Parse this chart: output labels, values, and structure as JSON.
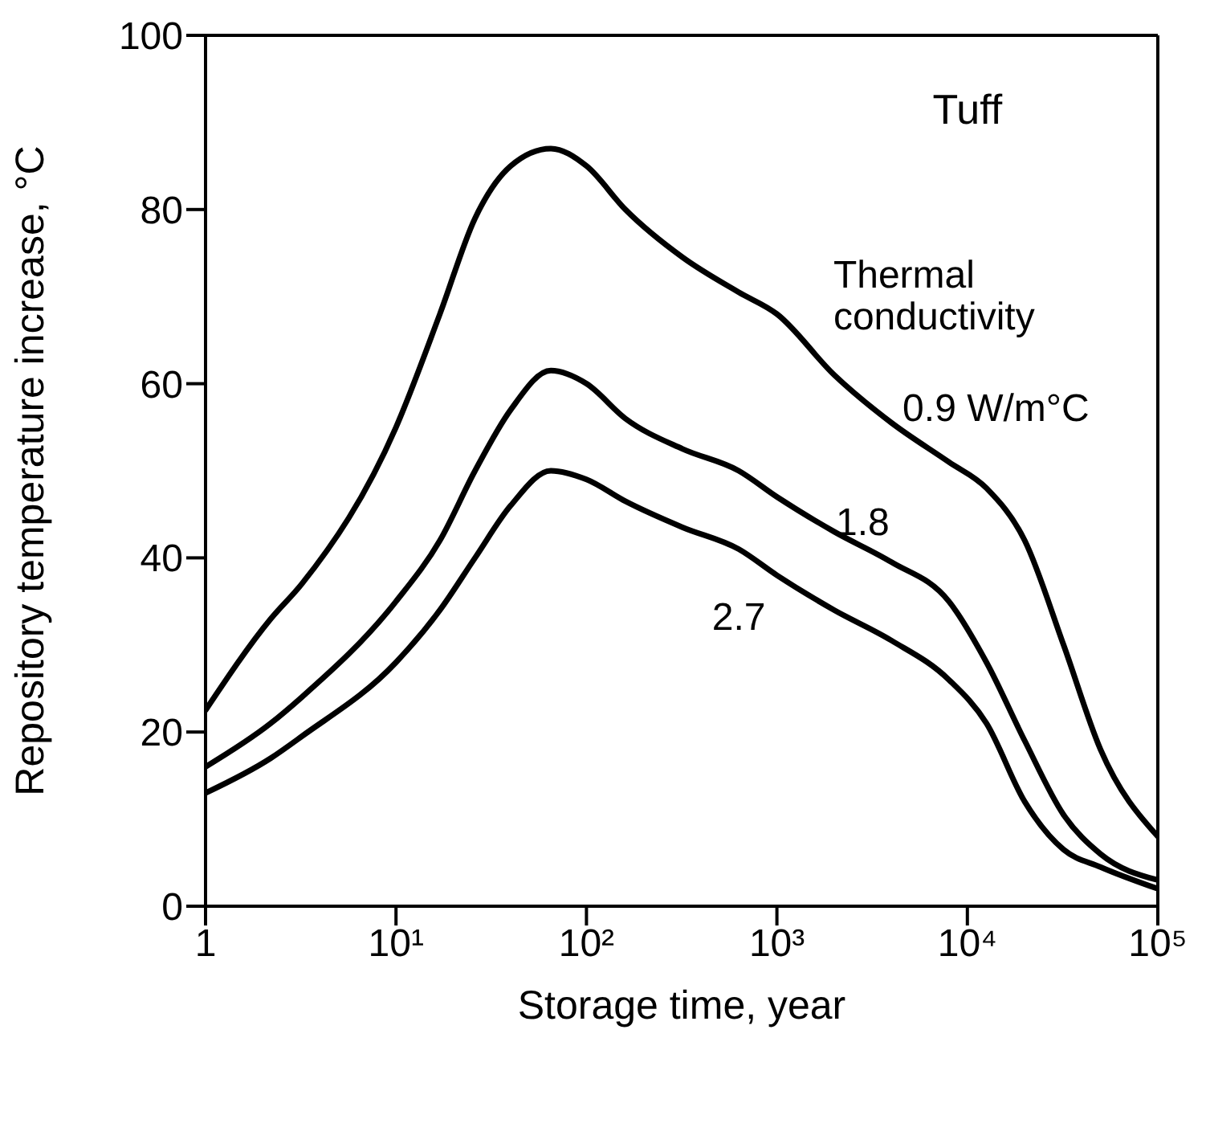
{
  "chart_data": {
    "type": "line",
    "xlabel": "Storage time, year",
    "ylabel": "Repository temperature increase, °C",
    "log": "x",
    "xlim": [
      1,
      100000
    ],
    "ylim": [
      0,
      100
    ],
    "xticks": [
      {
        "value": 1,
        "label": "1"
      },
      {
        "value": 10,
        "label": "10¹"
      },
      {
        "value": 100,
        "label": "10²"
      },
      {
        "value": 1000,
        "label": "10³"
      },
      {
        "value": 10000,
        "label": "10⁴"
      },
      {
        "value": 100000,
        "label": "10⁵"
      }
    ],
    "yticks": [
      0,
      20,
      40,
      60,
      80,
      100
    ],
    "x": [
      1,
      2.2,
      3.2,
      10,
      17,
      26,
      40,
      65,
      100,
      160,
      320,
      630,
      1000,
      2000,
      4000,
      8000,
      12600,
      20000,
      32000,
      50000,
      100000
    ],
    "marker": "none",
    "line_style": "solid",
    "grid": false,
    "legend": false,
    "series": [
      {
        "color": "#000000",
        "values": [
          22.5,
          33,
          37,
          55,
          68,
          79,
          85,
          87,
          85,
          80,
          74.5,
          70.5,
          68,
          61,
          55.5,
          51,
          48,
          42,
          30,
          18,
          8
        ]
      },
      {
        "color": "#000000",
        "values": [
          16,
          21,
          24,
          35,
          42,
          50,
          57,
          61.5,
          60,
          56,
          52.5,
          50,
          47,
          43,
          39.5,
          35,
          28,
          19,
          10.5,
          6,
          3
        ]
      },
      {
        "color": "#000000",
        "values": [
          13,
          17,
          19.5,
          28,
          34,
          40,
          46,
          50,
          49,
          46.5,
          43.5,
          41,
          38,
          34,
          30.5,
          26,
          21,
          12,
          6.5,
          4.5,
          2
        ]
      }
    ],
    "annotations": [
      "Tuff",
      "Thermal\nconductivity",
      "0.9 W/m°C",
      "1.8",
      "2.7"
    ]
  }
}
